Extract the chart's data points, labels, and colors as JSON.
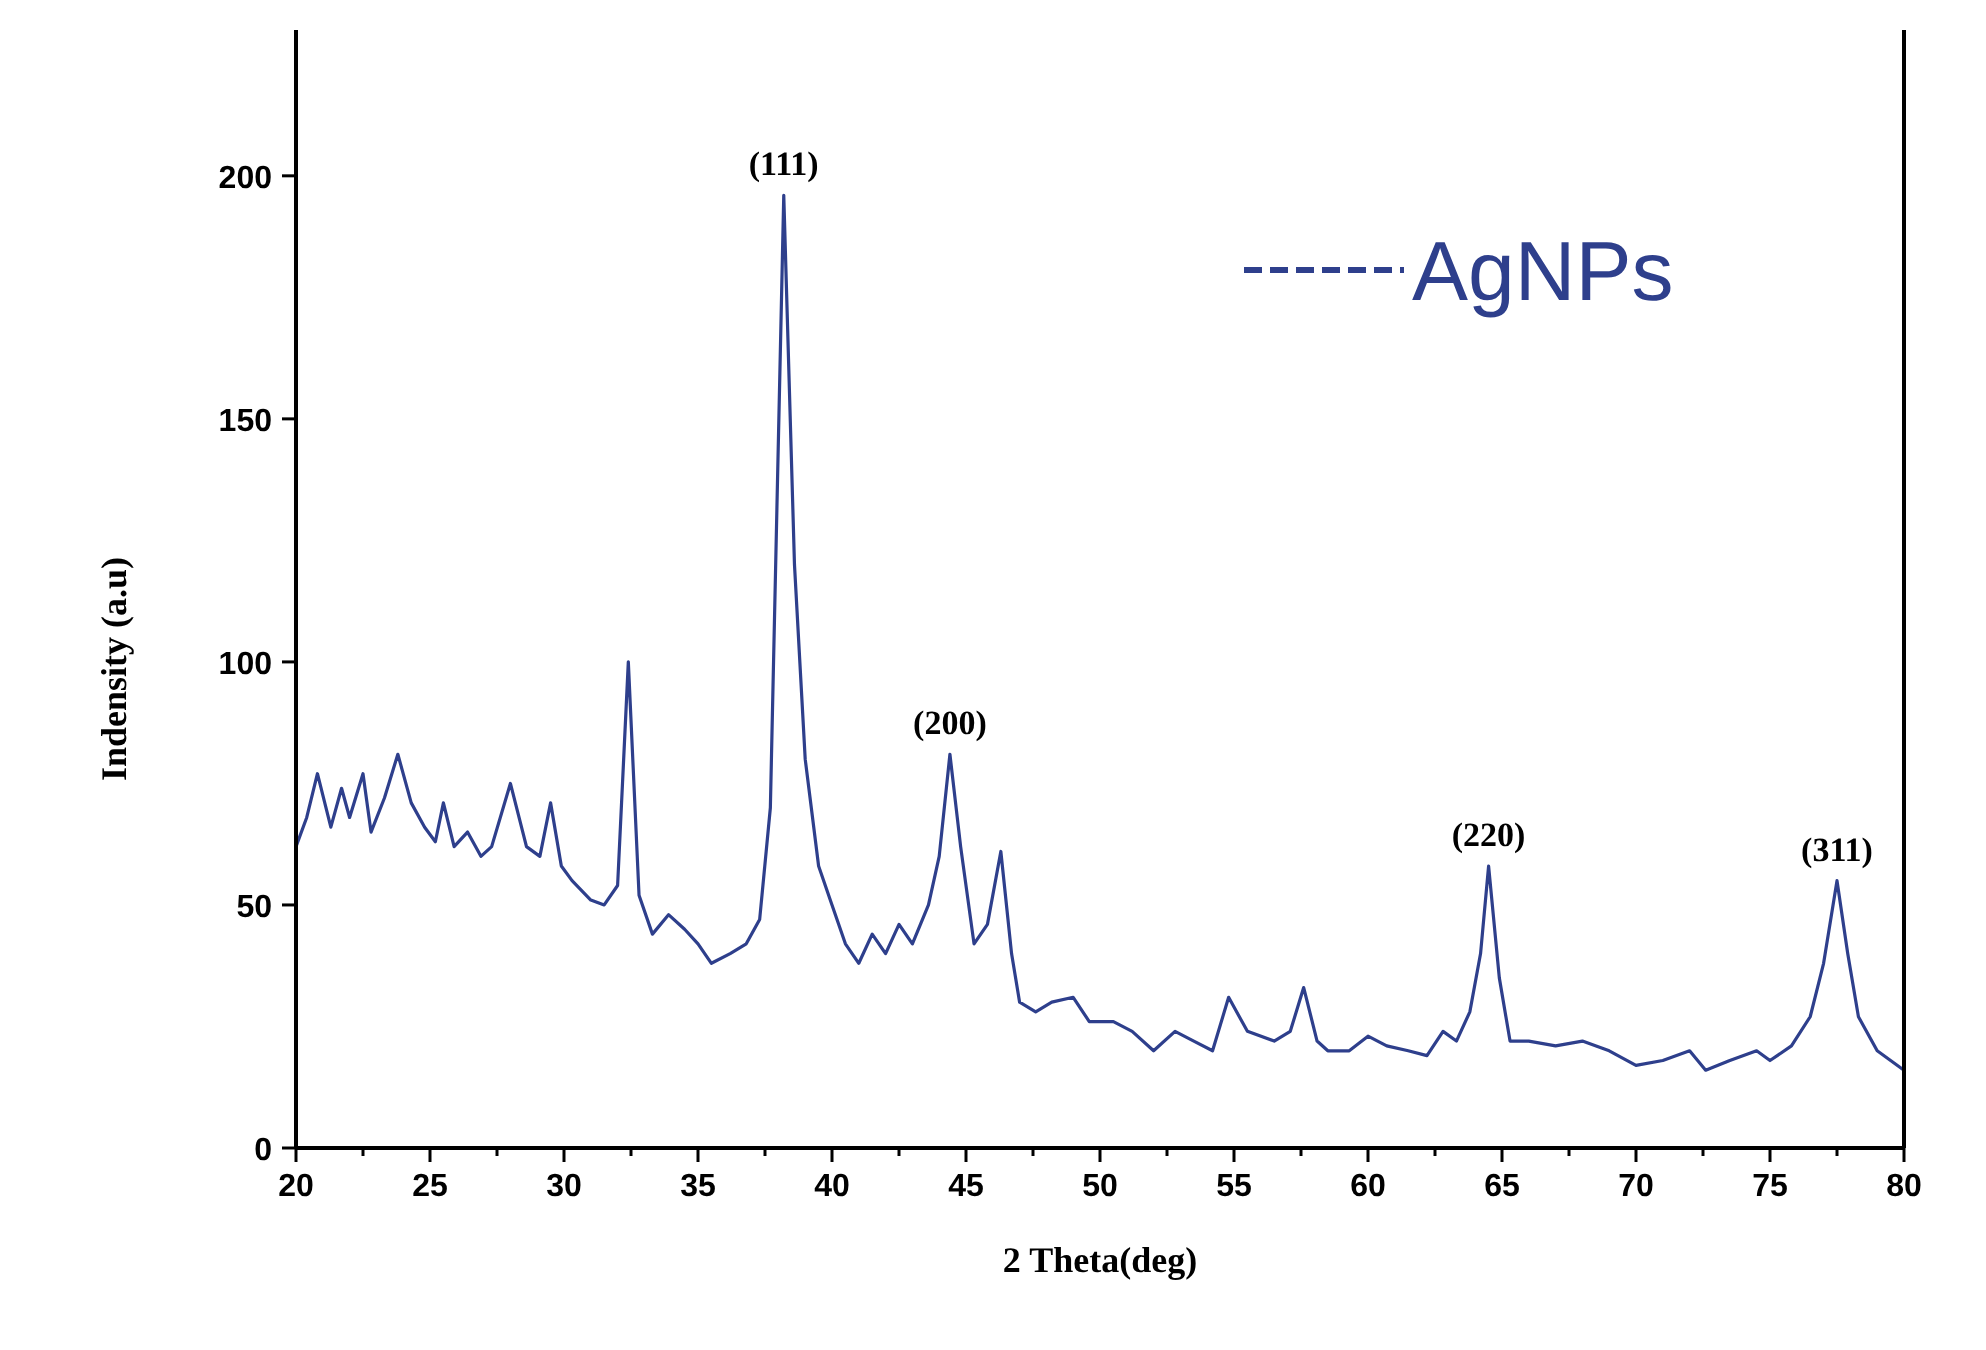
{
  "chart_data": {
    "type": "line",
    "xlabel": "2 Theta(deg)",
    "ylabel": "Indensity (a.u)",
    "xlim": [
      20,
      80
    ],
    "ylim": [
      0,
      230
    ],
    "xticks": [
      20,
      {
        "value": 22.5,
        "label": null
      },
      25,
      {
        "value": 27.5,
        "label": null
      },
      30,
      {
        "value": 32.5,
        "label": null
      },
      35,
      {
        "value": 37.5,
        "label": null
      },
      40,
      {
        "value": 42.5,
        "label": null
      },
      45,
      {
        "value": 47.5,
        "label": null
      },
      50,
      {
        "value": 52.5,
        "label": null
      },
      55,
      {
        "value": 57.5,
        "label": null
      },
      60,
      {
        "value": 62.5,
        "label": null
      },
      65,
      {
        "value": 67.5,
        "label": null
      },
      70,
      {
        "value": 72.5,
        "label": null
      },
      75,
      {
        "value": 77.5,
        "label": null
      },
      80
    ],
    "yticks": [
      0,
      50,
      100,
      150,
      200
    ],
    "grid": false,
    "legend": "top right",
    "marker": "none",
    "line_style": "solid",
    "series": [
      {
        "name": "AgNPs",
        "color": "#2e3f8c",
        "x": [
          20,
          20.4,
          20.8,
          21.3,
          21.7,
          22.0,
          22.5,
          22.8,
          23.3,
          23.8,
          24.3,
          24.8,
          25.2,
          25.5,
          25.9,
          26.4,
          26.9,
          27.3,
          28.0,
          28.6,
          29.1,
          29.5,
          29.9,
          30.3,
          31.0,
          31.5,
          32.0,
          32.4,
          32.8,
          33.3,
          33.9,
          34.5,
          35.0,
          35.5,
          36.2,
          36.8,
          37.3,
          37.7,
          38.2,
          38.6,
          39.0,
          39.5,
          40.0,
          40.5,
          41.0,
          41.5,
          42.0,
          42.5,
          43.0,
          43.6,
          44.0,
          44.4,
          44.8,
          45.3,
          45.8,
          46.3,
          46.7,
          47.0,
          47.6,
          48.2,
          49.0,
          49.6,
          50.5,
          51.2,
          52.0,
          52.8,
          53.5,
          54.2,
          54.8,
          55.5,
          56.5,
          57.1,
          57.6,
          58.1,
          58.5,
          59.3,
          60.0,
          60.7,
          61.5,
          62.2,
          62.8,
          63.3,
          63.8,
          64.2,
          64.5,
          64.9,
          65.3,
          66.0,
          67.0,
          68.0,
          69.0,
          70.0,
          71.0,
          72.0,
          72.6,
          73.5,
          74.5,
          75.0,
          75.8,
          76.5,
          77.0,
          77.5,
          77.9,
          78.3,
          79.0,
          79.5,
          80
        ],
        "values": [
          62,
          68,
          77,
          66,
          74,
          68,
          77,
          65,
          72,
          81,
          71,
          66,
          63,
          71,
          62,
          65,
          60,
          62,
          75,
          62,
          60,
          71,
          58,
          55,
          51,
          50,
          54,
          100,
          52,
          44,
          48,
          45,
          42,
          38,
          40,
          42,
          47,
          70,
          196,
          120,
          80,
          58,
          50,
          42,
          38,
          44,
          40,
          46,
          42,
          50,
          60,
          81,
          62,
          42,
          46,
          61,
          40,
          30,
          28,
          30,
          31,
          26,
          26,
          24,
          20,
          24,
          22,
          20,
          31,
          24,
          22,
          24,
          33,
          22,
          20,
          20,
          23,
          21,
          20,
          19,
          24,
          22,
          28,
          40,
          58,
          35,
          22,
          22,
          21,
          22,
          20,
          17,
          18,
          20,
          16,
          18,
          20,
          18,
          21,
          27,
          38,
          55,
          40,
          27,
          20,
          18,
          16
        ]
      }
    ],
    "annotations": [
      {
        "text": "(111)",
        "x": 38.2,
        "y": 196
      },
      {
        "text": "(200)",
        "x": 44.4,
        "y": 81
      },
      {
        "text": "(220)",
        "x": 64.5,
        "y": 58
      },
      {
        "text": "(311)",
        "x": 77.5,
        "y": 55
      }
    ]
  }
}
